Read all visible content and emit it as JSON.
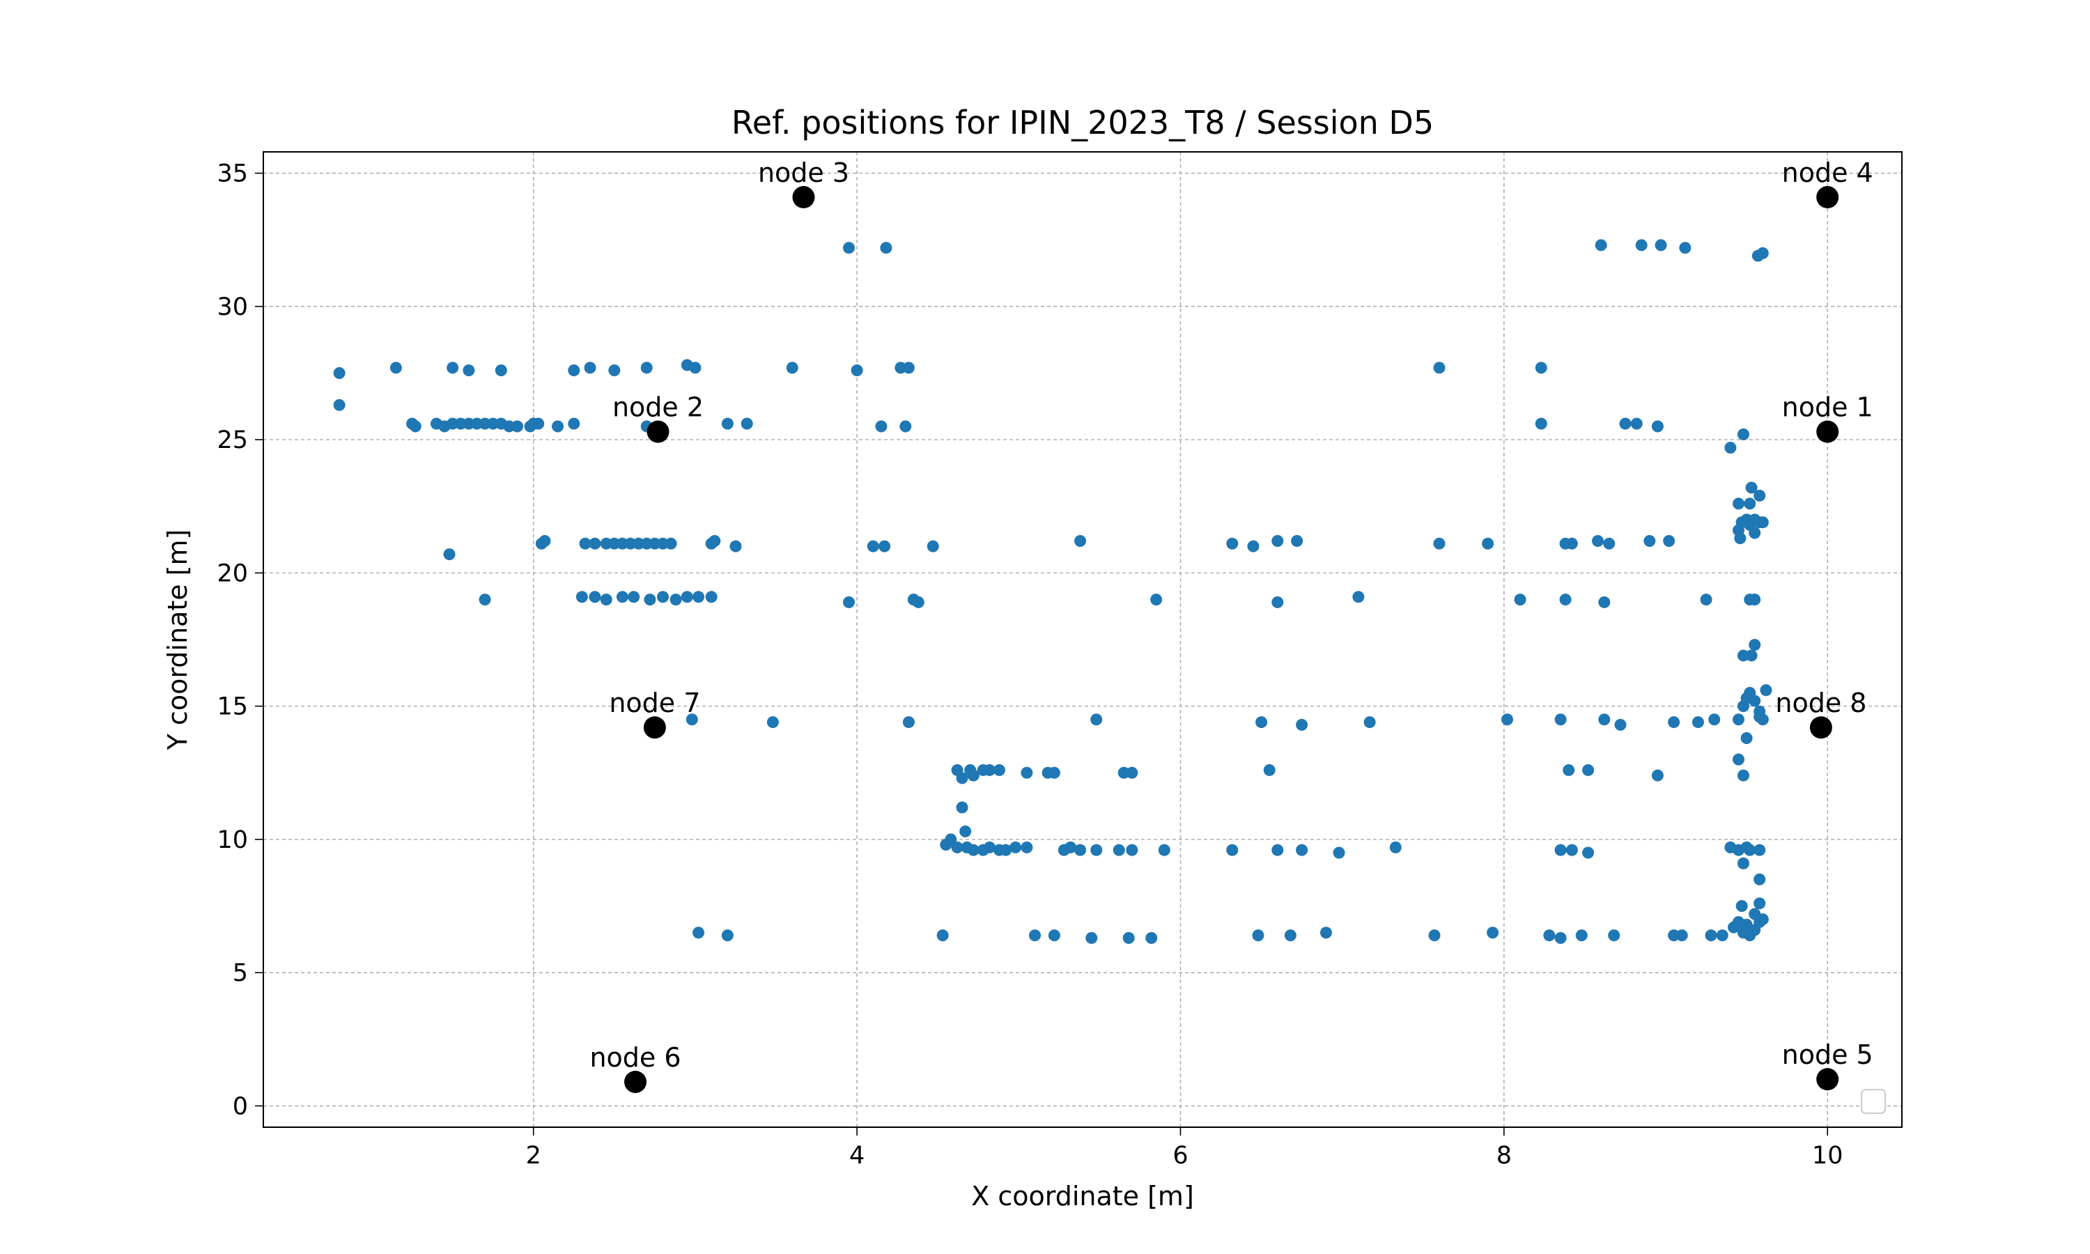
{
  "chart_data": {
    "type": "scatter",
    "title": "Ref. positions for IPIN_2023_T8 / Session D5",
    "xlabel": "X coordinate [m]",
    "ylabel": "Y coordinate [m]",
    "xlim": [
      0.33,
      10.46
    ],
    "ylim": [
      -0.8,
      35.8
    ],
    "xticks": [
      2,
      4,
      6,
      8,
      10
    ],
    "yticks": [
      0,
      5,
      10,
      15,
      20,
      25,
      30,
      35
    ],
    "grid": true,
    "legend": "lower-right (empty)",
    "colors": {
      "points": "#1f77b4",
      "nodes": "#000000"
    },
    "nodes": [
      {
        "label": "node 1",
        "x": 10.0,
        "y": 25.3
      },
      {
        "label": "node 2",
        "x": 2.77,
        "y": 25.3
      },
      {
        "label": "node 3",
        "x": 3.67,
        "y": 34.1
      },
      {
        "label": "node 4",
        "x": 10.0,
        "y": 34.1
      },
      {
        "label": "node 5",
        "x": 10.0,
        "y": 1.0
      },
      {
        "label": "node 6",
        "x": 2.63,
        "y": 0.9
      },
      {
        "label": "node 7",
        "x": 2.75,
        "y": 14.2
      },
      {
        "label": "node 8",
        "x": 9.96,
        "y": 14.2
      }
    ],
    "points": [
      [
        0.8,
        27.5
      ],
      [
        0.8,
        26.3
      ],
      [
        1.15,
        27.7
      ],
      [
        1.5,
        27.7
      ],
      [
        1.6,
        27.6
      ],
      [
        1.8,
        27.6
      ],
      [
        2.25,
        27.6
      ],
      [
        2.35,
        27.7
      ],
      [
        2.5,
        27.6
      ],
      [
        2.7,
        27.7
      ],
      [
        2.95,
        27.8
      ],
      [
        3.0,
        27.7
      ],
      [
        3.6,
        27.7
      ],
      [
        4.0,
        27.6
      ],
      [
        4.27,
        27.7
      ],
      [
        4.32,
        27.7
      ],
      [
        7.6,
        27.7
      ],
      [
        8.23,
        27.7
      ],
      [
        1.25,
        25.6
      ],
      [
        1.27,
        25.5
      ],
      [
        1.4,
        25.6
      ],
      [
        1.45,
        25.5
      ],
      [
        1.5,
        25.6
      ],
      [
        1.55,
        25.6
      ],
      [
        1.6,
        25.6
      ],
      [
        1.65,
        25.6
      ],
      [
        1.7,
        25.6
      ],
      [
        1.75,
        25.6
      ],
      [
        1.8,
        25.6
      ],
      [
        1.85,
        25.5
      ],
      [
        1.9,
        25.5
      ],
      [
        1.98,
        25.5
      ],
      [
        2.0,
        25.6
      ],
      [
        2.03,
        25.6
      ],
      [
        2.15,
        25.5
      ],
      [
        2.25,
        25.6
      ],
      [
        2.7,
        25.5
      ],
      [
        3.2,
        25.6
      ],
      [
        3.32,
        25.6
      ],
      [
        4.15,
        25.5
      ],
      [
        4.3,
        25.5
      ],
      [
        8.23,
        25.6
      ],
      [
        8.75,
        25.6
      ],
      [
        8.82,
        25.6
      ],
      [
        8.95,
        25.5
      ],
      [
        9.4,
        24.7
      ],
      [
        9.48,
        25.2
      ],
      [
        1.48,
        20.7
      ],
      [
        2.05,
        21.1
      ],
      [
        2.07,
        21.2
      ],
      [
        2.32,
        21.1
      ],
      [
        2.38,
        21.1
      ],
      [
        2.45,
        21.1
      ],
      [
        2.5,
        21.1
      ],
      [
        2.55,
        21.1
      ],
      [
        2.6,
        21.1
      ],
      [
        2.65,
        21.1
      ],
      [
        2.7,
        21.1
      ],
      [
        2.75,
        21.1
      ],
      [
        2.8,
        21.1
      ],
      [
        2.85,
        21.1
      ],
      [
        3.1,
        21.1
      ],
      [
        3.12,
        21.2
      ],
      [
        3.25,
        21.0
      ],
      [
        4.1,
        21.0
      ],
      [
        4.17,
        21.0
      ],
      [
        4.47,
        21.0
      ],
      [
        5.38,
        21.2
      ],
      [
        6.32,
        21.1
      ],
      [
        6.45,
        21.0
      ],
      [
        6.6,
        21.2
      ],
      [
        6.72,
        21.2
      ],
      [
        7.6,
        21.1
      ],
      [
        7.9,
        21.1
      ],
      [
        8.38,
        21.1
      ],
      [
        8.42,
        21.1
      ],
      [
        8.58,
        21.2
      ],
      [
        8.65,
        21.1
      ],
      [
        8.9,
        21.2
      ],
      [
        9.02,
        21.2
      ],
      [
        1.7,
        19.0
      ],
      [
        2.3,
        19.1
      ],
      [
        2.38,
        19.1
      ],
      [
        2.45,
        19.0
      ],
      [
        2.55,
        19.1
      ],
      [
        2.62,
        19.1
      ],
      [
        2.72,
        19.0
      ],
      [
        2.8,
        19.1
      ],
      [
        2.88,
        19.0
      ],
      [
        2.95,
        19.1
      ],
      [
        3.02,
        19.1
      ],
      [
        3.1,
        19.1
      ],
      [
        3.95,
        18.9
      ],
      [
        4.35,
        19.0
      ],
      [
        4.38,
        18.9
      ],
      [
        5.85,
        19.0
      ],
      [
        6.6,
        18.9
      ],
      [
        7.1,
        19.1
      ],
      [
        8.1,
        19.0
      ],
      [
        8.38,
        19.0
      ],
      [
        8.62,
        18.9
      ],
      [
        9.25,
        19.0
      ],
      [
        9.52,
        19.0
      ],
      [
        9.55,
        19.0
      ],
      [
        9.45,
        21.6
      ],
      [
        9.47,
        21.9
      ],
      [
        9.5,
        22.0
      ],
      [
        9.52,
        21.8
      ],
      [
        9.55,
        22.0
      ],
      [
        9.58,
        21.9
      ],
      [
        9.6,
        21.9
      ],
      [
        9.45,
        22.6
      ],
      [
        9.52,
        22.6
      ],
      [
        9.53,
        23.2
      ],
      [
        9.58,
        22.9
      ],
      [
        9.46,
        21.3
      ],
      [
        9.55,
        21.5
      ],
      [
        2.98,
        14.5
      ],
      [
        3.48,
        14.4
      ],
      [
        4.32,
        14.4
      ],
      [
        5.48,
        14.5
      ],
      [
        6.5,
        14.4
      ],
      [
        6.75,
        14.3
      ],
      [
        7.17,
        14.4
      ],
      [
        8.02,
        14.5
      ],
      [
        8.35,
        14.5
      ],
      [
        8.62,
        14.5
      ],
      [
        8.72,
        14.3
      ],
      [
        9.05,
        14.4
      ],
      [
        9.2,
        14.4
      ],
      [
        9.3,
        14.5
      ],
      [
        9.45,
        14.5
      ],
      [
        9.48,
        15.0
      ],
      [
        9.5,
        15.3
      ],
      [
        9.52,
        15.5
      ],
      [
        9.55,
        15.2
      ],
      [
        9.58,
        14.8
      ],
      [
        9.6,
        14.5
      ],
      [
        9.62,
        15.6
      ],
      [
        9.5,
        13.8
      ],
      [
        9.48,
        16.9
      ],
      [
        9.55,
        17.3
      ],
      [
        9.53,
        16.9
      ],
      [
        9.45,
        13.0
      ],
      [
        9.48,
        12.4
      ],
      [
        9.58,
        14.6
      ],
      [
        4.62,
        12.6
      ],
      [
        4.65,
        12.3
      ],
      [
        4.7,
        12.6
      ],
      [
        4.72,
        12.4
      ],
      [
        4.78,
        12.6
      ],
      [
        4.82,
        12.6
      ],
      [
        4.88,
        12.6
      ],
      [
        5.05,
        12.5
      ],
      [
        5.18,
        12.5
      ],
      [
        5.22,
        12.5
      ],
      [
        5.65,
        12.5
      ],
      [
        5.7,
        12.5
      ],
      [
        6.55,
        12.6
      ],
      [
        8.4,
        12.6
      ],
      [
        8.52,
        12.6
      ],
      [
        8.95,
        12.4
      ],
      [
        4.65,
        11.2
      ],
      [
        4.67,
        10.3
      ],
      [
        4.55,
        9.8
      ],
      [
        4.58,
        10.0
      ],
      [
        4.62,
        9.7
      ],
      [
        4.68,
        9.7
      ],
      [
        4.72,
        9.6
      ],
      [
        4.78,
        9.6
      ],
      [
        4.82,
        9.7
      ],
      [
        4.88,
        9.6
      ],
      [
        4.92,
        9.6
      ],
      [
        4.98,
        9.7
      ],
      [
        5.05,
        9.7
      ],
      [
        5.28,
        9.6
      ],
      [
        5.32,
        9.7
      ],
      [
        5.38,
        9.6
      ],
      [
        5.48,
        9.6
      ],
      [
        5.62,
        9.6
      ],
      [
        5.7,
        9.6
      ],
      [
        5.9,
        9.6
      ],
      [
        6.32,
        9.6
      ],
      [
        6.6,
        9.6
      ],
      [
        6.75,
        9.6
      ],
      [
        6.98,
        9.5
      ],
      [
        7.33,
        9.7
      ],
      [
        8.35,
        9.6
      ],
      [
        8.42,
        9.6
      ],
      [
        8.52,
        9.5
      ],
      [
        9.4,
        9.7
      ],
      [
        9.45,
        9.6
      ],
      [
        9.5,
        9.7
      ],
      [
        9.52,
        9.6
      ],
      [
        9.58,
        9.6
      ],
      [
        9.48,
        9.1
      ],
      [
        9.58,
        8.5
      ],
      [
        3.02,
        6.5
      ],
      [
        3.2,
        6.4
      ],
      [
        4.53,
        6.4
      ],
      [
        5.1,
        6.4
      ],
      [
        5.22,
        6.4
      ],
      [
        5.45,
        6.3
      ],
      [
        5.68,
        6.3
      ],
      [
        5.82,
        6.3
      ],
      [
        6.48,
        6.4
      ],
      [
        6.68,
        6.4
      ],
      [
        6.9,
        6.5
      ],
      [
        7.57,
        6.4
      ],
      [
        7.93,
        6.5
      ],
      [
        8.28,
        6.4
      ],
      [
        8.35,
        6.3
      ],
      [
        8.48,
        6.4
      ],
      [
        8.68,
        6.4
      ],
      [
        9.05,
        6.4
      ],
      [
        9.1,
        6.4
      ],
      [
        9.28,
        6.4
      ],
      [
        9.35,
        6.4
      ],
      [
        9.42,
        6.7
      ],
      [
        9.45,
        6.9
      ],
      [
        9.48,
        6.5
      ],
      [
        9.5,
        6.8
      ],
      [
        9.52,
        6.4
      ],
      [
        9.55,
        6.6
      ],
      [
        9.58,
        6.9
      ],
      [
        9.6,
        7.0
      ],
      [
        9.47,
        7.5
      ],
      [
        9.55,
        7.2
      ],
      [
        9.58,
        7.6
      ],
      [
        9.5,
        6.6
      ],
      [
        3.95,
        32.2
      ],
      [
        4.18,
        32.2
      ],
      [
        8.6,
        32.3
      ],
      [
        8.85,
        32.3
      ],
      [
        8.97,
        32.3
      ],
      [
        9.12,
        32.2
      ],
      [
        9.57,
        31.9
      ],
      [
        9.6,
        32.0
      ]
    ]
  }
}
